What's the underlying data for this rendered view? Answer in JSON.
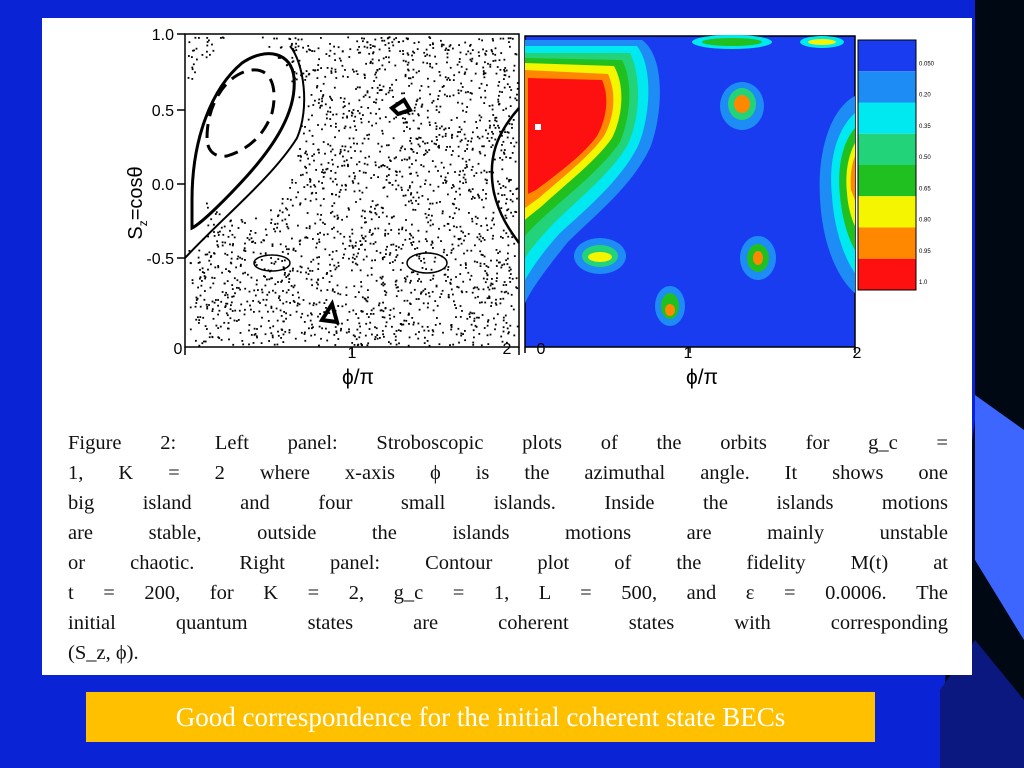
{
  "slide": {
    "background_color": "#0a23d4",
    "callout_text": "Good correspondence for the initial coherent state BECs",
    "callout_color": "#ffc000"
  },
  "figure": {
    "left_panel": {
      "x_label": "ϕ/π",
      "y_label": "S",
      "y_label_sub": "z",
      "y_label_rest": "=cosθ",
      "x_ticks": [
        "0",
        "1",
        "2"
      ],
      "y_ticks": [
        "1.0",
        "0.5",
        "0.0",
        "-0.5"
      ]
    },
    "right_panel": {
      "x_label": "ϕ/π",
      "x_ticks": [
        "0",
        "1",
        "2"
      ],
      "colorbar_labels": [
        "0.050",
        "0.20",
        "0.35",
        "0.50",
        "0.65",
        "0.80",
        "0.95",
        "1.0"
      ],
      "colorbar_colors": [
        "#1a3cf0",
        "#1e8cf5",
        "#00e8f0",
        "#22d37a",
        "#20c020",
        "#f5f500",
        "#ff8800",
        "#ff1010"
      ]
    },
    "caption_lines": [
      "Figure 2: Left panel: Stroboscopic plots of the orbits for g_c =",
      "1, K = 2 where x-axis ϕ is the azimuthal angle. It shows one",
      "big island and four small islands. Inside the islands motions",
      "are stable, outside the islands motions are mainly unstable",
      "or chaotic. Right panel: Contour plot of the fidelity M(t) at",
      "t = 200, for K = 2, g_c = 1, L = 500, and ε = 0.0006. The",
      "initial quantum states are coherent states with corresponding",
      "(S_z, ϕ)."
    ]
  }
}
